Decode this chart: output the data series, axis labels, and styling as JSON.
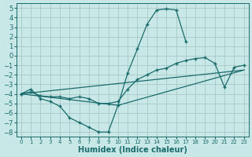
{
  "xlabel": "Humidex (Indice chaleur)",
  "bg_color": "#c8e8e8",
  "grid_color": "#a8c8c8",
  "line_color": "#1a6b6b",
  "xlim": [
    -0.5,
    23.5
  ],
  "ylim": [
    -8.5,
    5.5
  ],
  "xticks": [
    0,
    1,
    2,
    3,
    4,
    5,
    6,
    7,
    8,
    9,
    10,
    11,
    12,
    13,
    14,
    15,
    16,
    17,
    18,
    19,
    20,
    21,
    22,
    23
  ],
  "yticks": [
    -8,
    -7,
    -6,
    -5,
    -4,
    -3,
    -2,
    -1,
    0,
    1,
    2,
    3,
    4,
    5
  ],
  "curve1_x": [
    0,
    1,
    2,
    3,
    4,
    5,
    6,
    7,
    8,
    9,
    10,
    11,
    12,
    13,
    14,
    15,
    16,
    17
  ],
  "curve1_y": [
    -4.0,
    -3.5,
    -4.5,
    -4.8,
    -5.3,
    -6.5,
    -7.0,
    -7.5,
    -8.0,
    -8.0,
    -5.2,
    -1.8,
    0.7,
    3.3,
    4.8,
    4.9,
    4.8,
    1.5
  ],
  "curve2_x": [
    0,
    1,
    2,
    3,
    4,
    5,
    6,
    7,
    8,
    9,
    10,
    11,
    12,
    13,
    14,
    15,
    16,
    17,
    18,
    19,
    20,
    21,
    22,
    23
  ],
  "curve2_y": [
    -4.0,
    -3.8,
    -4.2,
    -4.3,
    -4.3,
    -4.5,
    -4.3,
    -4.5,
    -5.0,
    -5.0,
    -4.8,
    -3.5,
    -2.5,
    -2.0,
    -1.5,
    -1.3,
    -0.8,
    -0.5,
    -0.3,
    -0.2,
    -0.8,
    -3.3,
    -1.2,
    -1.0
  ],
  "line3_x": [
    0,
    23
  ],
  "line3_y": [
    -4.0,
    -1.5
  ],
  "line4_x": [
    0,
    10,
    23
  ],
  "line4_y": [
    -4.0,
    -5.2,
    -1.5
  ]
}
